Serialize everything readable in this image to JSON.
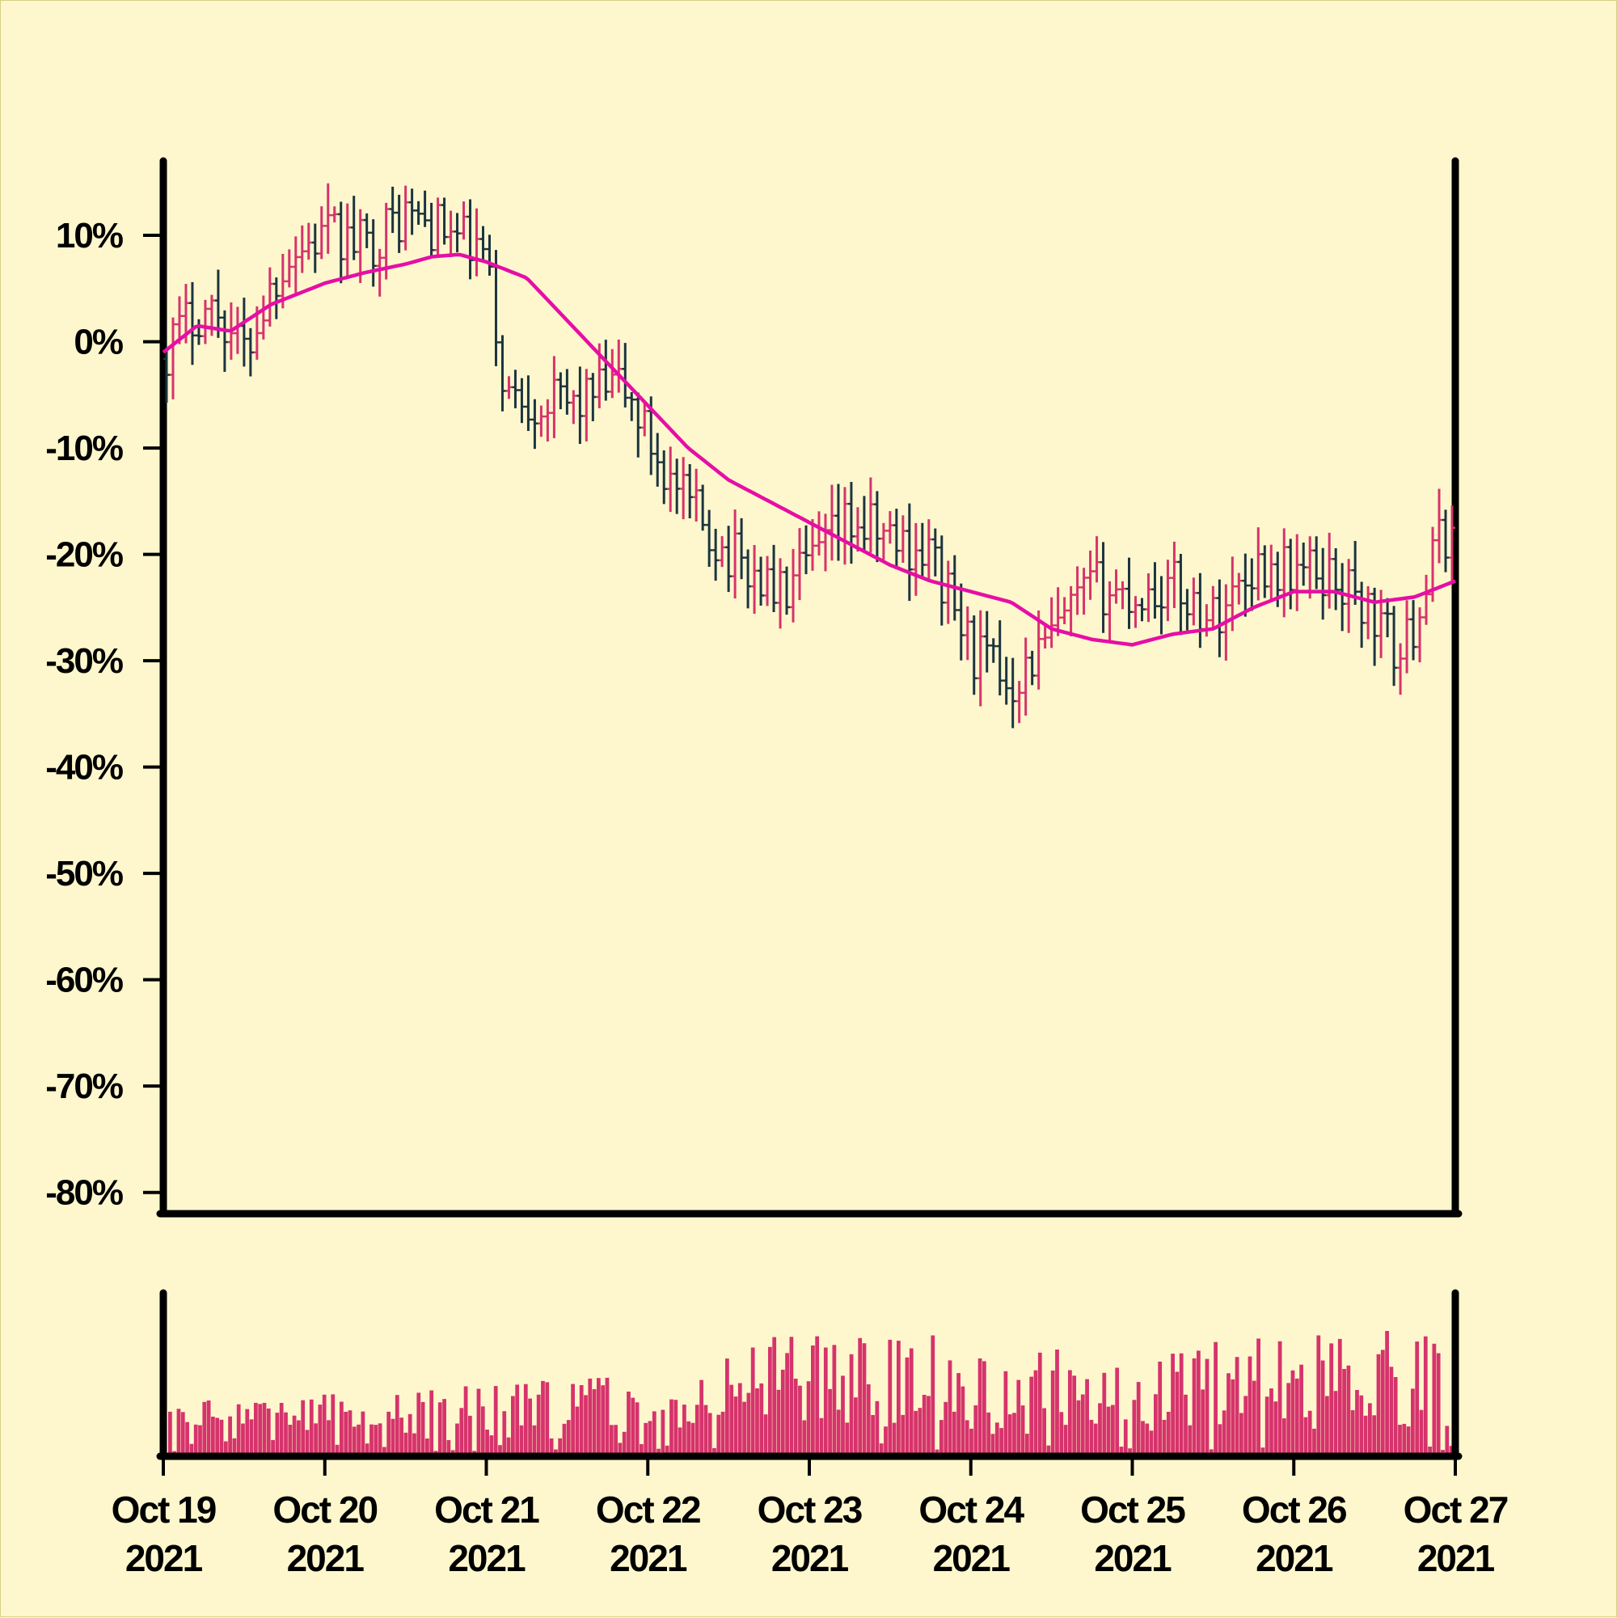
{
  "chart_data": {
    "type": "ohlc",
    "x_axis": {
      "ticks": [
        {
          "date": "2021-10-19",
          "line1": "Oct 19",
          "line2": "2021"
        },
        {
          "date": "2021-10-20",
          "line1": "Oct 20",
          "line2": "2021"
        },
        {
          "date": "2021-10-21",
          "line1": "Oct 21",
          "line2": "2021"
        },
        {
          "date": "2021-10-22",
          "line1": "Oct 22",
          "line2": "2021"
        },
        {
          "date": "2021-10-23",
          "line1": "Oct 23",
          "line2": "2021"
        },
        {
          "date": "2021-10-24",
          "line1": "Oct 24",
          "line2": "2021"
        },
        {
          "date": "2021-10-25",
          "line1": "Oct 25",
          "line2": "2021"
        },
        {
          "date": "2021-10-26",
          "line1": "Oct 26",
          "line2": "2021"
        },
        {
          "date": "2021-10-27",
          "line1": "Oct 27",
          "line2": "2021"
        }
      ],
      "range": [
        "2021-10-19",
        "2021-10-27"
      ]
    },
    "y_axis": {
      "unit": "%",
      "ticks": [
        {
          "value": 10,
          "label": "10%"
        },
        {
          "value": 0,
          "label": "0%"
        },
        {
          "value": -10,
          "label": "-10%"
        },
        {
          "value": -20,
          "label": "-20%"
        },
        {
          "value": -30,
          "label": "-30%"
        },
        {
          "value": -40,
          "label": "-40%"
        },
        {
          "value": -50,
          "label": "-50%"
        },
        {
          "value": -60,
          "label": "-60%"
        },
        {
          "value": -70,
          "label": "-70%"
        },
        {
          "value": -80,
          "label": "-80%"
        }
      ],
      "range": [
        -82,
        17
      ]
    },
    "price_path_pct": [
      {
        "date": "2021-10-19T00:00",
        "value": -1
      },
      {
        "date": "2021-10-19T05:00",
        "value": 3
      },
      {
        "date": "2021-10-19T08:00",
        "value": 3
      },
      {
        "date": "2021-10-19T12:00",
        "value": -1
      },
      {
        "date": "2021-10-19T18:00",
        "value": 8
      },
      {
        "date": "2021-10-20T00:00",
        "value": 10
      },
      {
        "date": "2021-10-20T06:00",
        "value": 9
      },
      {
        "date": "2021-10-20T12:00",
        "value": 12
      },
      {
        "date": "2021-10-20T19:00",
        "value": 10
      },
      {
        "date": "2021-10-21T00:00",
        "value": 8
      },
      {
        "date": "2021-10-21T01:00",
        "value": 2
      },
      {
        "date": "2021-10-21T03:00",
        "value": -5
      },
      {
        "date": "2021-10-21T12:00",
        "value": -6
      },
      {
        "date": "2021-10-21T20:00",
        "value": -4
      },
      {
        "date": "2021-10-22T04:00",
        "value": -14
      },
      {
        "date": "2021-10-22T12:00",
        "value": -20
      },
      {
        "date": "2021-10-22T20:00",
        "value": -24
      },
      {
        "date": "2021-10-23T06:00",
        "value": -17
      },
      {
        "date": "2021-10-23T18:00",
        "value": -20
      },
      {
        "date": "2021-10-24T00:00",
        "value": -29
      },
      {
        "date": "2021-10-24T06:00",
        "value": -32
      },
      {
        "date": "2021-10-24T12:00",
        "value": -28
      },
      {
        "date": "2021-10-24T18:00",
        "value": -23
      },
      {
        "date": "2021-10-25T00:00",
        "value": -24
      },
      {
        "date": "2021-10-25T06:00",
        "value": -23
      },
      {
        "date": "2021-10-25T12:00",
        "value": -26
      },
      {
        "date": "2021-10-25T18:00",
        "value": -21
      },
      {
        "date": "2021-10-26T06:00",
        "value": -22
      },
      {
        "date": "2021-10-26T12:00",
        "value": -26
      },
      {
        "date": "2021-10-26T16:00",
        "value": -30
      },
      {
        "date": "2021-10-26T22:00",
        "value": -18
      },
      {
        "date": "2021-10-27T00:00",
        "value": -18
      }
    ],
    "moving_average_pct": [
      {
        "date": "2021-10-19T00:00",
        "value": -1
      },
      {
        "date": "2021-10-19T05:00",
        "value": 1.5
      },
      {
        "date": "2021-10-19T10:00",
        "value": 1
      },
      {
        "date": "2021-10-19T16:00",
        "value": 3.5
      },
      {
        "date": "2021-10-20T00:00",
        "value": 5.5
      },
      {
        "date": "2021-10-20T06:00",
        "value": 6.5
      },
      {
        "date": "2021-10-20T12:00",
        "value": 7.3
      },
      {
        "date": "2021-10-20T16:00",
        "value": 8
      },
      {
        "date": "2021-10-20T20:00",
        "value": 8.2
      },
      {
        "date": "2021-10-21T00:00",
        "value": 7.5
      },
      {
        "date": "2021-10-21T06:00",
        "value": 6
      },
      {
        "date": "2021-10-21T12:00",
        "value": 2
      },
      {
        "date": "2021-10-21T18:00",
        "value": -2
      },
      {
        "date": "2021-10-22T00:00",
        "value": -6
      },
      {
        "date": "2021-10-22T06:00",
        "value": -10
      },
      {
        "date": "2021-10-22T12:00",
        "value": -13
      },
      {
        "date": "2021-10-22T18:00",
        "value": -15
      },
      {
        "date": "2021-10-23T00:00",
        "value": -17
      },
      {
        "date": "2021-10-23T06:00",
        "value": -19
      },
      {
        "date": "2021-10-23T12:00",
        "value": -21
      },
      {
        "date": "2021-10-23T18:00",
        "value": -22.5
      },
      {
        "date": "2021-10-24T00:00",
        "value": -23.5
      },
      {
        "date": "2021-10-24T06:00",
        "value": -24.5
      },
      {
        "date": "2021-10-24T12:00",
        "value": -27
      },
      {
        "date": "2021-10-24T18:00",
        "value": -28
      },
      {
        "date": "2021-10-25T00:00",
        "value": -28.5
      },
      {
        "date": "2021-10-25T06:00",
        "value": -27.5
      },
      {
        "date": "2021-10-25T12:00",
        "value": -27
      },
      {
        "date": "2021-10-25T18:00",
        "value": -25
      },
      {
        "date": "2021-10-26T00:00",
        "value": -23.5
      },
      {
        "date": "2021-10-26T06:00",
        "value": -23.5
      },
      {
        "date": "2021-10-26T12:00",
        "value": -24.5
      },
      {
        "date": "2021-10-26T18:00",
        "value": -24
      },
      {
        "date": "2021-10-27T00:00",
        "value": -22.5
      }
    ],
    "volume": {
      "range": [
        0,
        100
      ],
      "note_levels": "relative bar heights on an unlabelled volume axis"
    },
    "colors": {
      "background": "#fef7cd",
      "up": "#d6336c",
      "down": "#1b3440",
      "moving_average": "#e60ea6",
      "volume": "#d6336c",
      "axis": "#000000"
    }
  }
}
